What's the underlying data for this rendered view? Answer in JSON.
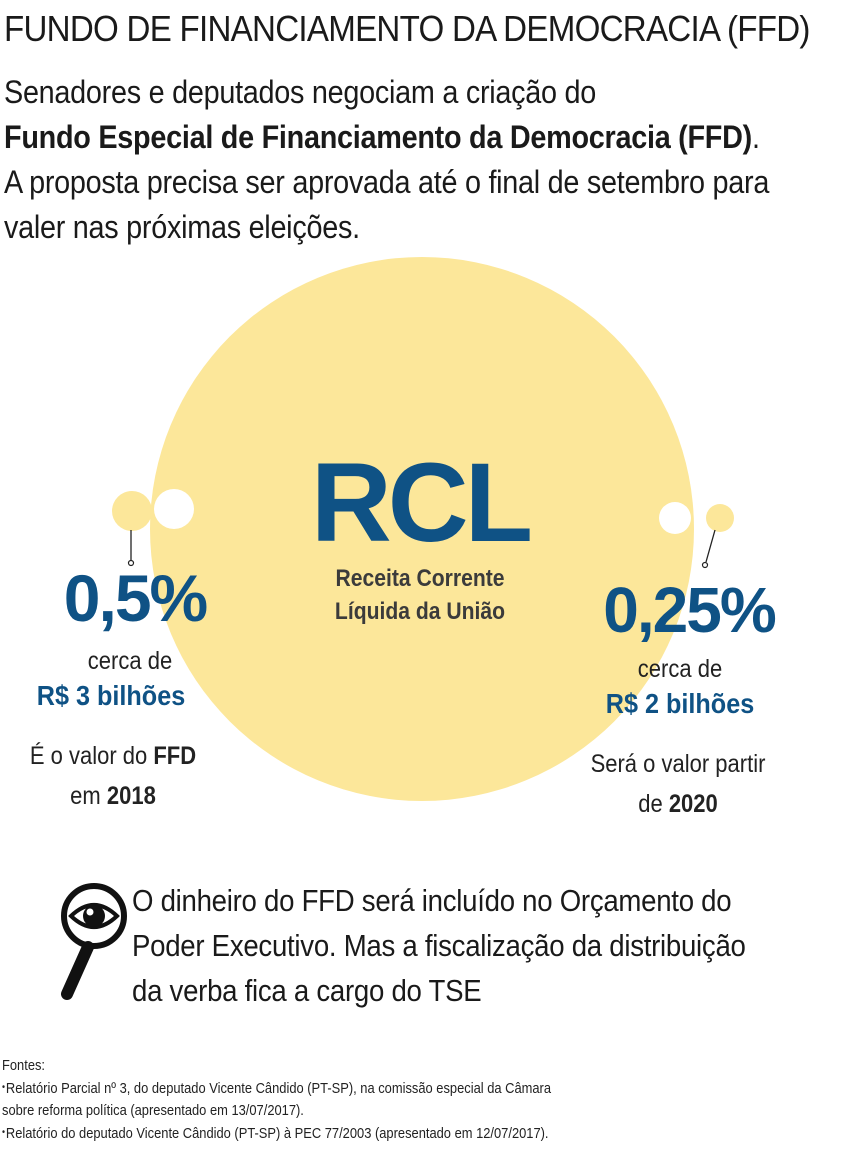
{
  "title": "FUNDO DE FINANCIAMENTO DA DEMOCRACIA (FFD)",
  "intro": {
    "line1": "Senadores e deputados negociam a criação do",
    "line2_bold": "Fundo Especial de Financiamento da Democracia (FFD)",
    "line2_end": ".",
    "line3": "A proposta precisa ser aprovada até o final de setembro para",
    "line4": "valer nas próximas eleições."
  },
  "center": {
    "abbr": "RCL",
    "name_line1": "Receita Corrente",
    "name_line2": "Líquida da União"
  },
  "left": {
    "percent": "0,5%",
    "approx": "cerca de",
    "amount": "R$ 3 bilhões",
    "note_prefix": "É o valor do ",
    "note_bold": "FFD",
    "note_line2_prefix": "em ",
    "note_year": "2018"
  },
  "right": {
    "percent": "0,25%",
    "approx": "cerca de",
    "amount": "R$ 2 bilhões",
    "note_line1": "Será o valor partir",
    "note_line2_prefix": "de ",
    "note_year": "2020"
  },
  "fiscalization": {
    "icon": "magnifier-eye-icon",
    "line1": "O dinheiro do FFD será incluído no Orçamento do",
    "line2": "Poder Executivo. Mas a fiscalização da distribuição",
    "line3": "da verba fica a cargo do TSE"
  },
  "sources": {
    "label": "Fontes:",
    "item1_line1": "Relatório Parcial nº 3, do deputado Vicente Cândido (PT-SP), na comissão especial da Câmara",
    "item1_line2": "sobre reforma política (apresentado em 13/07/2017).",
    "item2": "Relatório do deputado Vicente Cândido (PT-SP) à PEC 77/2003 (apresentado em 12/07/2017)."
  },
  "colors": {
    "circle": "#fce79a",
    "accent_blue": "#0f5285",
    "text": "#1a1a1a"
  }
}
